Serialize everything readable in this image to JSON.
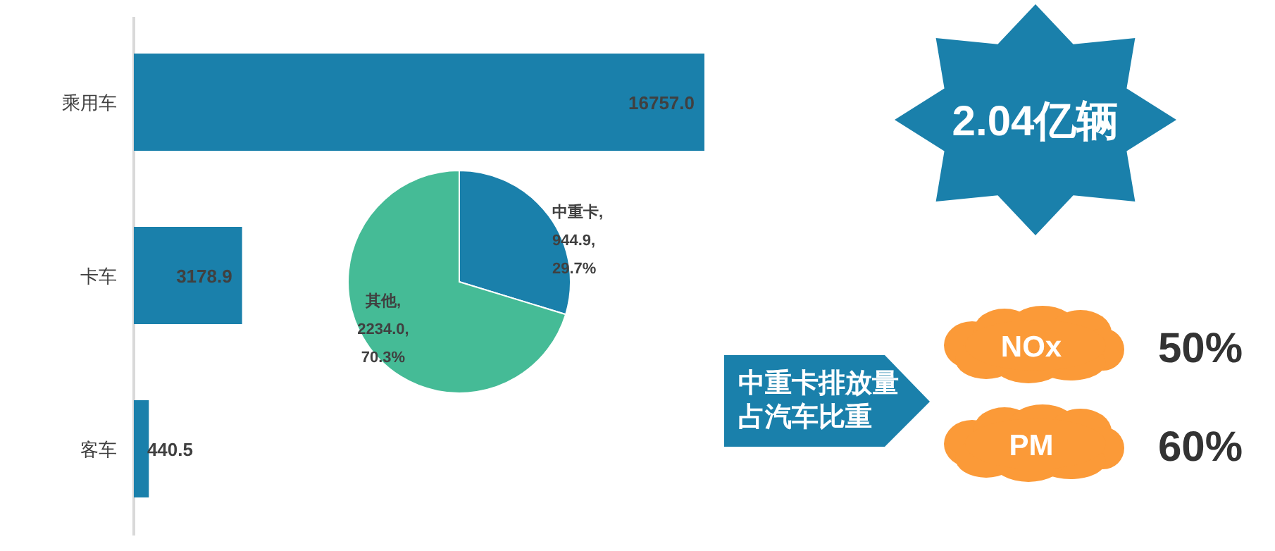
{
  "chart_data": [
    {
      "type": "bar",
      "orientation": "horizontal",
      "categories": [
        "乘用车",
        "卡车",
        "客车"
      ],
      "values": [
        16757.0,
        3178.9,
        440.5
      ],
      "value_labels": [
        "16757.0",
        "3178.9",
        "440.5"
      ],
      "color": "#1a80ab"
    },
    {
      "type": "pie",
      "categories": [
        "中重卡",
        "其他"
      ],
      "values": [
        944.9,
        2234.0
      ],
      "value_labels": [
        ",\n944.9,\n29.7%",
        ",\n2234.0,\n70.3%"
      ],
      "colors": [
        "#1a80ab",
        "#45bb96"
      ]
    },
    {
      "type": "other",
      "annotations": [
        "2.04亿辆",
        "中重卡排放量",
        "占汽车比重",
        "NOx",
        "50%",
        "PM",
        "60%"
      ]
    }
  ]
}
